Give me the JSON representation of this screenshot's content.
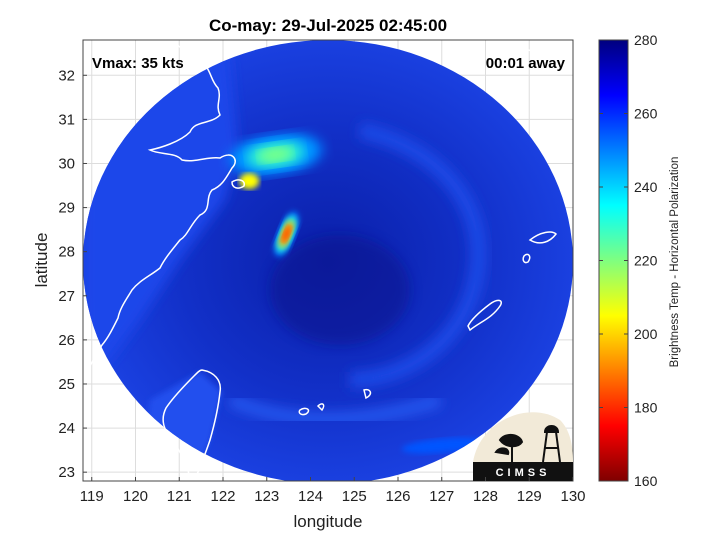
{
  "chart_data": {
    "type": "heatmap",
    "title": "Co-may: 29-Jul-2025 02:45:00",
    "xlabel": "longitude",
    "ylabel": "latitude",
    "xlim": [
      118.8,
      130.0
    ],
    "ylim": [
      22.8,
      32.8
    ],
    "xticks": [
      119,
      120,
      121,
      122,
      123,
      124,
      125,
      126,
      127,
      128,
      129,
      130
    ],
    "yticks": [
      23,
      24,
      25,
      26,
      27,
      28,
      29,
      30,
      31,
      32
    ],
    "grid": true,
    "colorbar": {
      "label": "Brightness Temp - Horizontal Polarization",
      "range": [
        160,
        280
      ],
      "ticks": [
        160,
        180,
        200,
        220,
        240,
        260,
        280
      ],
      "colormap": "jet"
    },
    "center": {
      "lon": 124.4,
      "lat": 27.1
    },
    "features": [
      {
        "name": "cold convective core",
        "lon": 123.45,
        "lat": 28.4,
        "bt": 185
      },
      {
        "name": "northern convective band",
        "lon": 123.2,
        "lat": 30.2,
        "bt": 220
      },
      {
        "name": "band spur",
        "lon": 122.6,
        "lat": 29.6,
        "bt": 205
      },
      {
        "name": "southeast band",
        "lon": 127.0,
        "lat": 23.6,
        "bt": 255
      }
    ],
    "background_bt": 270,
    "annotations": {
      "vmax": "Vmax: 35 kts",
      "time_away": "00:01 away"
    }
  },
  "logo_text": "CIMSS",
  "colors": {
    "land_outline": "#ffffff",
    "coast_outside": "#000000",
    "background": "#ffffff"
  }
}
